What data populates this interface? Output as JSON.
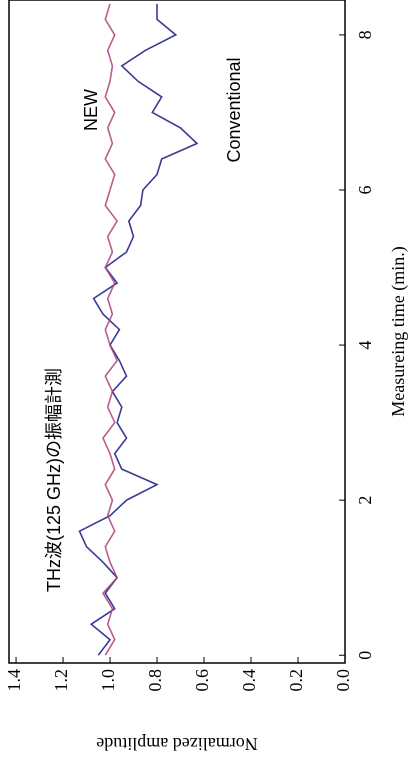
{
  "chart_data": {
    "type": "line",
    "x_label": "Measureing time (min.)",
    "y_label": "Normalized amplitude",
    "annotations": [
      {
        "text": "THz波(125 GHz)の振幅計測"
      },
      {
        "text": "NEW",
        "color": "#e8202a"
      },
      {
        "text": "Conventional",
        "color": "#000000"
      }
    ],
    "x": [
      0,
      0.2,
      0.4,
      0.6,
      0.8,
      1.0,
      1.2,
      1.4,
      1.6,
      1.8,
      2.0,
      2.2,
      2.4,
      2.6,
      2.8,
      3.0,
      3.2,
      3.4,
      3.6,
      3.8,
      4.0,
      4.2,
      4.4,
      4.6,
      4.8,
      5.0,
      5.2,
      5.4,
      5.6,
      5.8,
      6.0,
      6.2,
      6.4,
      6.6,
      6.8,
      7.0,
      7.2,
      7.4,
      7.6,
      7.8,
      8.0,
      8.2,
      8.4
    ],
    "series": [
      {
        "name": "Conventional",
        "color": "#3a3a98",
        "values": [
          1.05,
          1.0,
          1.08,
          0.98,
          1.02,
          0.97,
          1.03,
          1.1,
          1.13,
          1.0,
          0.93,
          0.8,
          0.95,
          0.98,
          0.93,
          0.97,
          0.95,
          0.99,
          0.93,
          0.96,
          1.0,
          0.96,
          1.03,
          1.07,
          0.97,
          1.02,
          0.93,
          0.9,
          0.92,
          0.87,
          0.86,
          0.8,
          0.78,
          0.63,
          0.7,
          0.82,
          0.78,
          0.88,
          0.95,
          0.85,
          0.72,
          0.8,
          0.8
        ]
      },
      {
        "name": "NEW",
        "color": "#b0407a",
        "values": [
          1.02,
          0.98,
          1.01,
          0.99,
          1.03,
          0.97,
          1.0,
          1.02,
          0.98,
          1.01,
          0.99,
          1.02,
          0.98,
          1.0,
          1.03,
          0.98,
          1.01,
          0.99,
          1.02,
          0.97,
          1.0,
          1.02,
          0.99,
          1.01,
          0.98,
          1.02,
          0.99,
          1.01,
          0.97,
          1.02,
          1.0,
          0.98,
          1.02,
          0.99,
          1.01,
          0.98,
          1.02,
          1.0,
          0.99,
          1.01,
          0.98,
          1.02,
          1.0
        ]
      }
    ],
    "xlim": [
      -0.1,
      8.45
    ],
    "ylim": [
      0,
      1.43
    ],
    "xticks": [
      0,
      2,
      4,
      6,
      8
    ],
    "yticks": [
      {
        "value": 0,
        "label": "0.0"
      },
      {
        "value": 0.2,
        "label": "0.2"
      },
      {
        "value": 0.4,
        "label": "0.4"
      },
      {
        "value": 0.6,
        "label": "0.6"
      },
      {
        "value": 0.8,
        "label": "0.8"
      },
      {
        "value": 1.0,
        "label": "1.0"
      },
      {
        "value": 1.2,
        "label": "1.2"
      },
      {
        "value": 1.4,
        "label": "1.4"
      }
    ]
  }
}
